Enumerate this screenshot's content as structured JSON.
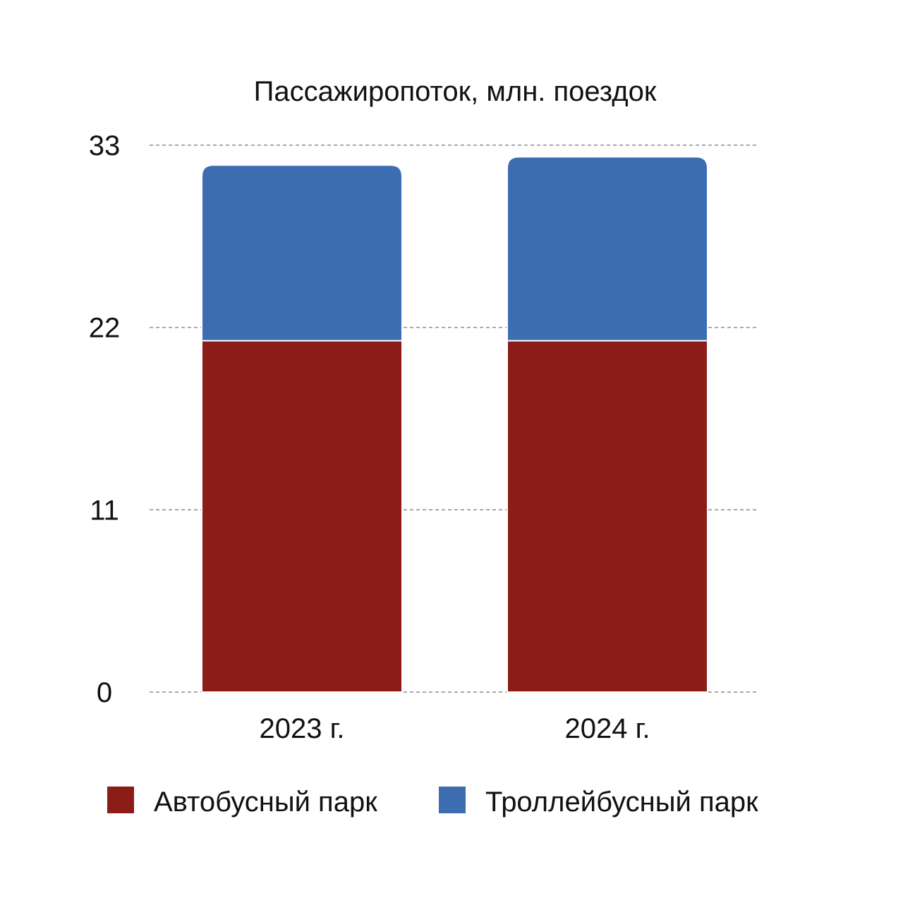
{
  "chart_data": {
    "type": "bar",
    "stacked": true,
    "title": "Пассажиропоток, млн. поездок",
    "categories": [
      "2023 г.",
      "2024 г."
    ],
    "series": [
      {
        "name": "Автобусный парк",
        "values": [
          21.2,
          21.2
        ],
        "color": "#8b1c17"
      },
      {
        "name": "Троллейбусный парк",
        "values": [
          10.6,
          11.1
        ],
        "color": "#3d6cb0"
      }
    ],
    "yticks": [
      "0",
      "11",
      "22",
      "33"
    ],
    "ylim": [
      0,
      33
    ],
    "grid": true,
    "legend": "bottom"
  }
}
